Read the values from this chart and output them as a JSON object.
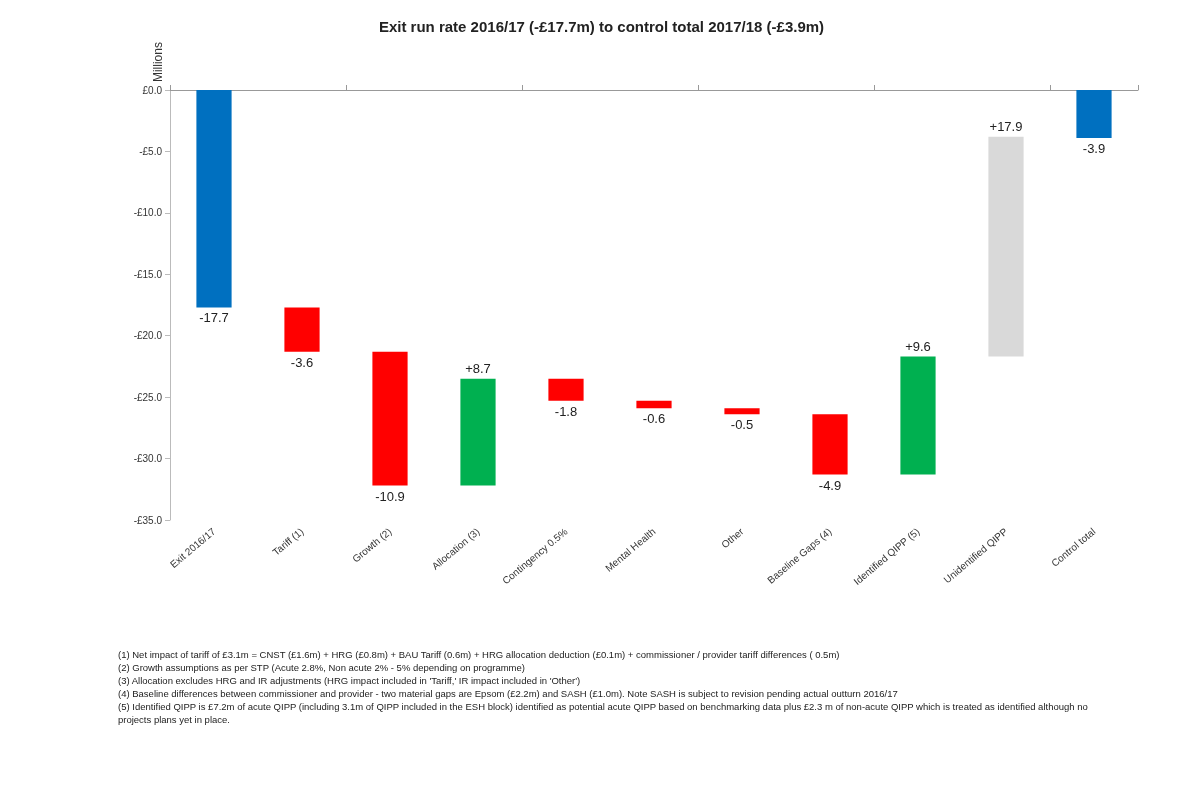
{
  "chart_data": {
    "type": "bar",
    "title": "Exit run rate 2016/17 (-£17.7m) to control total 2017/18 (-£3.9m)",
    "ylabel": "Millions",
    "categories": [
      "Exit 2016/17",
      "Tariff (1)",
      "Growth (2)",
      "Allocation (3)",
      "Contingency 0.5%",
      "Mental Health",
      "Other",
      "Baseline Gaps (4)",
      "Identified QIPP (5)",
      "Unidentified QIPP",
      "Control total"
    ],
    "values": [
      -17.7,
      -3.6,
      -10.9,
      8.7,
      -1.8,
      -0.6,
      -0.5,
      -4.9,
      9.6,
      17.9,
      -3.9
    ],
    "base": [
      0,
      -17.7,
      -21.3,
      -32.2,
      -23.5,
      -25.3,
      -25.9,
      -26.4,
      -31.3,
      -21.7,
      0
    ],
    "colors": [
      "#0070c0",
      "#ff0000",
      "#ff0000",
      "#00b050",
      "#ff0000",
      "#ff0000",
      "#ff0000",
      "#ff0000",
      "#00b050",
      "#d9d9d9",
      "#0070c0"
    ],
    "value_labels": [
      "-17.7",
      "-3.6",
      "-10.9",
      "+8.7",
      "-1.8",
      "-0.6",
      "-0.5",
      "-4.9",
      "+9.6",
      "+17.9",
      "-3.9"
    ],
    "ylim": [
      -35,
      0
    ],
    "yticks": [
      {
        "value": 0,
        "label": "£0.0"
      },
      {
        "value": -5,
        "label": "-£5.0"
      },
      {
        "value": -10,
        "label": "-£10.0"
      },
      {
        "value": -15,
        "label": "-£15.0"
      },
      {
        "value": -20,
        "label": "-£20.0"
      },
      {
        "value": -25,
        "label": "-£25.0"
      },
      {
        "value": -30,
        "label": "-£30.0"
      },
      {
        "value": -35,
        "label": "-£35.0"
      }
    ],
    "grid": false,
    "annotations": [
      "(1) Net impact of tariff of £3.1m  = CNST (£1.6m) + HRG (£0.8m) + BAU Tariff (0.6m) + HRG  allocation deduction  (£0.1m) + commissioner / provider  tariff differences ( 0.5m)",
      "(2) Growth assumptions as per STP (Acute 2.8%, Non acute 2% - 5% depending on programme)",
      "(3) Allocation excludes HRG and IR adjustments (HRG impact included in 'Tariff,' IR impact included in  'Other')",
      "(4) Baseline differences between commissioner and provider  - two material gaps are  Epsom (£2.2m) and SASH (£1.0m). Note SASH is subject to revision pending actual outturn 2016/17",
      "(5) Identified QIPP is  £7.2m of acute QIPP (including 3.1m of QIPP included in the ESH block) identified as potential acute QIPP based on benchmarking data plus £2.3 m of non-acute QIPP which is treated as identified although no projects plans yet in place."
    ]
  }
}
